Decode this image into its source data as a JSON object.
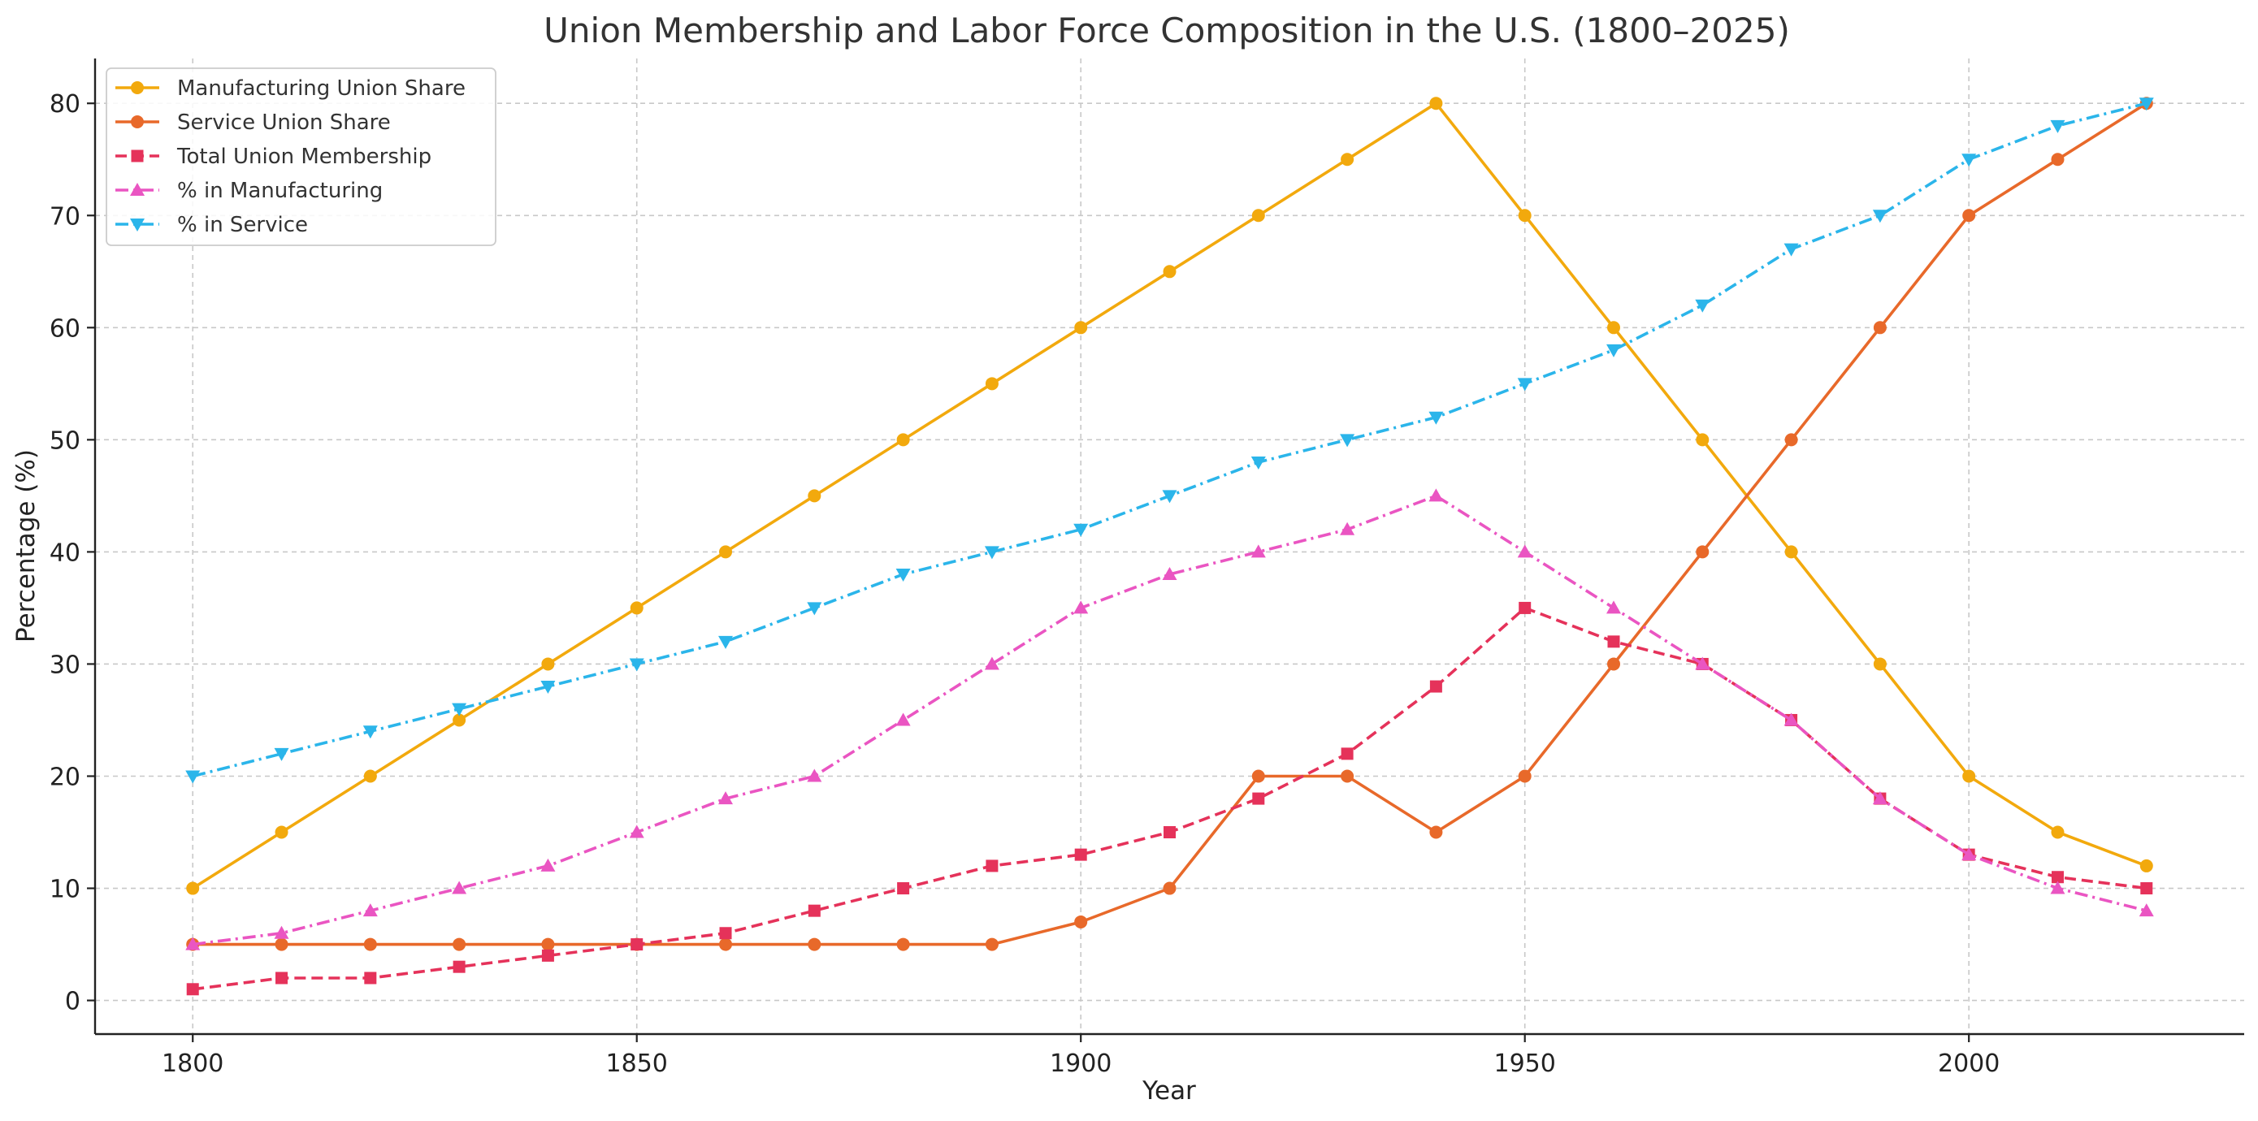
{
  "chart_data": {
    "type": "line",
    "title": "Union Membership and Labor Force Composition in the U.S. (1800–2025)",
    "xlabel": "Year",
    "ylabel": "Percentage (%)",
    "xlim": [
      1789,
      2031
    ],
    "ylim": [
      -3,
      84
    ],
    "xticks": [
      1800,
      1850,
      1900,
      1950,
      2000
    ],
    "yticks": [
      0,
      10,
      20,
      30,
      40,
      50,
      60,
      70,
      80
    ],
    "grid": true,
    "legend_position": "top-left",
    "x": [
      1800,
      1810,
      1820,
      1830,
      1840,
      1850,
      1860,
      1870,
      1880,
      1890,
      1900,
      1910,
      1920,
      1930,
      1940,
      1950,
      1960,
      1970,
      1980,
      1990,
      2000,
      2010,
      2020
    ],
    "series": [
      {
        "name": "Manufacturing Union Share",
        "color": "#F2A90D",
        "line_style": "solid",
        "marker": "circle",
        "values": [
          10,
          15,
          20,
          25,
          30,
          35,
          40,
          45,
          50,
          55,
          60,
          65,
          70,
          75,
          80,
          70,
          60,
          50,
          40,
          30,
          20,
          15,
          12
        ]
      },
      {
        "name": "Service Union Share",
        "color": "#E8692A",
        "line_style": "solid",
        "marker": "circle",
        "values": [
          5,
          5,
          5,
          5,
          5,
          5,
          5,
          5,
          5,
          5,
          7,
          10,
          20,
          20,
          15,
          20,
          30,
          40,
          50,
          60,
          70,
          75,
          80
        ]
      },
      {
        "name": "Total Union Membership",
        "color": "#E5325A",
        "line_style": "dashed",
        "marker": "square",
        "values": [
          1,
          2,
          2,
          3,
          4,
          5,
          6,
          8,
          10,
          12,
          13,
          15,
          18,
          22,
          28,
          35,
          32,
          30,
          25,
          18,
          13,
          11,
          10
        ]
      },
      {
        "name": "% in Manufacturing",
        "color": "#EA55C2",
        "line_style": "dashdot",
        "marker": "triangle-up",
        "values": [
          5,
          6,
          8,
          10,
          12,
          15,
          18,
          20,
          25,
          30,
          35,
          38,
          40,
          42,
          45,
          40,
          35,
          30,
          25,
          18,
          13,
          10,
          8
        ]
      },
      {
        "name": "% in Service",
        "color": "#2BB5EA",
        "line_style": "dashdot",
        "marker": "triangle-down",
        "values": [
          20,
          22,
          24,
          26,
          28,
          30,
          32,
          35,
          38,
          40,
          42,
          45,
          48,
          50,
          52,
          55,
          58,
          62,
          67,
          70,
          75,
          78,
          80
        ]
      }
    ]
  }
}
